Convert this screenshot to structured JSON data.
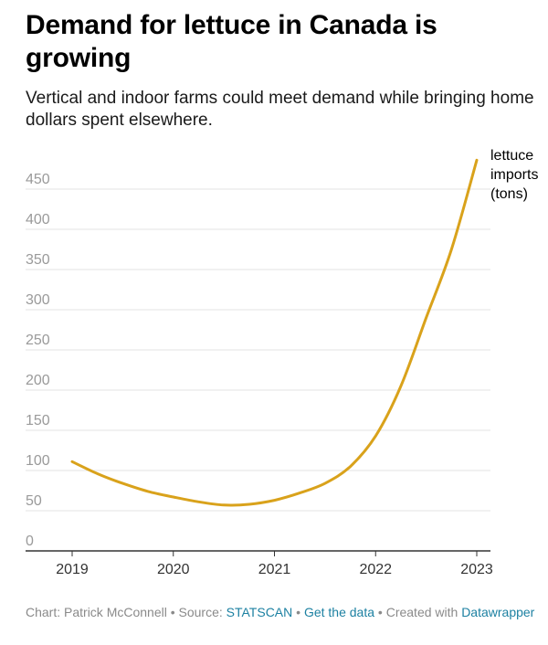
{
  "title": "Demand for lettuce in Canada is growing",
  "subtitle": "Vertical and indoor farms could meet demand while bringing home dollars spent elsewhere.",
  "footer": {
    "chart_by": "Chart: Patrick McConnell",
    "sep1": " • ",
    "source_label": "Source: ",
    "source_link": "STATSCAN",
    "sep2": " • ",
    "get_data": "Get the data",
    "sep3": " • ",
    "created_with": "Created with ",
    "datawrapper": "Datawrapper"
  },
  "colors": {
    "line": "#d9a21b",
    "grid": "#e3e3e3",
    "axis": "#333333",
    "link": "#1d81a2"
  },
  "chart_data": {
    "type": "line",
    "title": "Demand for lettuce in Canada is growing",
    "subtitle": "Vertical and indoor farms could meet demand while bringing home dollars spent elsewhere.",
    "xlabel": "",
    "ylabel": "",
    "x_ticks": [
      "2019",
      "2020",
      "2021",
      "2022",
      "2023"
    ],
    "y_ticks": [
      0,
      50,
      100,
      150,
      200,
      250,
      300,
      350,
      400,
      450
    ],
    "xlim": [
      2019,
      2023
    ],
    "ylim": [
      0,
      450
    ],
    "grid": true,
    "series": [
      {
        "name": "lettuce imports (tons)",
        "label_lines": [
          "lettuce",
          "imports",
          "(tons)"
        ],
        "x": [
          2019.0,
          2019.25,
          2019.5,
          2019.75,
          2020.0,
          2020.25,
          2020.5,
          2020.75,
          2021.0,
          2021.25,
          2021.5,
          2021.75,
          2022.0,
          2022.25,
          2022.5,
          2022.75,
          2023.0
        ],
        "y": [
          111,
          96,
          84,
          74,
          67,
          61,
          57,
          58,
          63,
          72,
          84,
          105,
          143,
          205,
          290,
          375,
          486
        ]
      }
    ]
  }
}
